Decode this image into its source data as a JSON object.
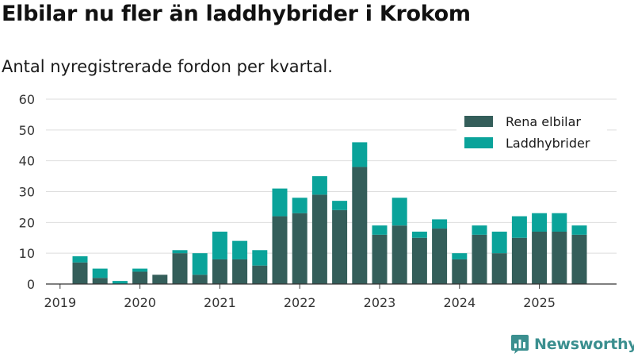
{
  "header": {
    "title": "Elbilar nu fler än laddhybrider i Krokom",
    "subtitle": "Antal nyregistrerade fordon per kvartal."
  },
  "brand": {
    "name": "Newsworthy",
    "logo_icon": "newsworthy-logo-icon"
  },
  "chart_data": {
    "type": "bar",
    "stacked": true,
    "categories": [
      "2019Q2",
      "2019Q3",
      "2019Q4",
      "2020Q1",
      "2020Q2",
      "2020Q3",
      "2020Q4",
      "2021Q1",
      "2021Q2",
      "2021Q3",
      "2021Q4",
      "2022Q1",
      "2022Q2",
      "2022Q3",
      "2022Q4",
      "2023Q1",
      "2023Q2",
      "2023Q3",
      "2023Q4",
      "2024Q1",
      "2024Q2",
      "2024Q3",
      "2024Q4",
      "2025Q1",
      "2025Q2",
      "2025Q3"
    ],
    "x_tick_labels": [
      "2019",
      "2020",
      "2021",
      "2022",
      "2023",
      "2024",
      "2025"
    ],
    "series": [
      {
        "name": "Rena elbilar",
        "color": "#345e5a",
        "values": [
          7,
          2,
          0,
          4,
          3,
          10,
          3,
          8,
          8,
          6,
          22,
          23,
          29,
          24,
          38,
          16,
          19,
          15,
          18,
          8,
          16,
          10,
          15,
          17,
          17,
          16
        ]
      },
      {
        "name": "Laddhybrider",
        "color": "#0aa39a",
        "values": [
          2,
          3,
          1,
          1,
          0,
          1,
          7,
          9,
          6,
          5,
          9,
          5,
          6,
          3,
          8,
          3,
          9,
          2,
          3,
          2,
          3,
          7,
          7,
          6,
          6,
          3
        ]
      }
    ],
    "ylim": [
      0,
      60
    ],
    "yticks": [
      0,
      10,
      20,
      30,
      40,
      50,
      60
    ],
    "grid": true,
    "legend_position": "top-right",
    "xlabel": "",
    "ylabel": ""
  }
}
